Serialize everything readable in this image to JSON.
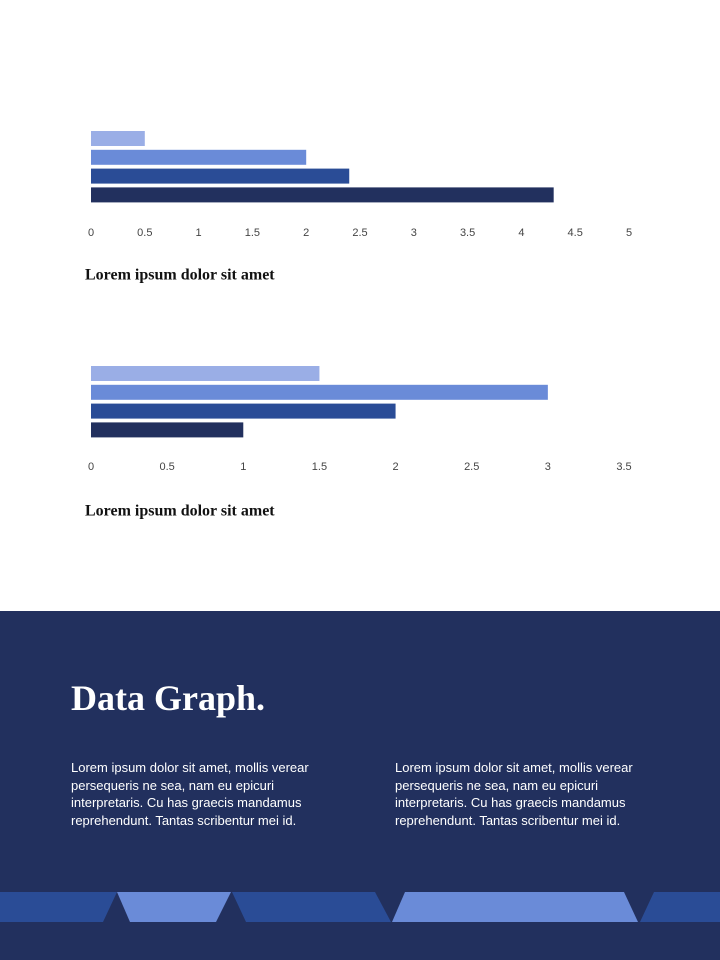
{
  "chart_data": [
    {
      "type": "bar",
      "orientation": "horizontal",
      "caption": "Lorem ipsum dolor sit amet",
      "values": [
        0.5,
        2.0,
        2.4,
        4.3
      ],
      "colors": [
        "#9aaee6",
        "#6a8bd8",
        "#2a4c96",
        "#22305e"
      ],
      "xlim": [
        0,
        5
      ],
      "xticks": [
        0,
        0.5,
        1,
        1.5,
        2,
        2.5,
        3,
        3.5,
        4,
        4.5,
        5
      ],
      "grid": false
    },
    {
      "type": "bar",
      "orientation": "horizontal",
      "caption": "Lorem ipsum dolor sit amet",
      "values": [
        1.5,
        3.0,
        2.0,
        1.0
      ],
      "colors": [
        "#9aaee6",
        "#6a8bd8",
        "#2a4c96",
        "#22305e"
      ],
      "xlim": [
        0,
        3.5
      ],
      "xticks": [
        0,
        0.5,
        1,
        1.5,
        2,
        2.5,
        3,
        3.5
      ],
      "grid": false
    }
  ],
  "heading": "Data Graph.",
  "paragraphs": [
    "Lorem ipsum dolor sit amet, mollis verear persequeris ne sea, nam eu epicuri interpretaris. Cu has graecis mandamus reprehendunt. Tantas scribentur mei id.",
    "Lorem ipsum dolor sit amet, mollis verear persequeris ne sea, nam eu epicuri interpretaris. Cu has graecis mandamus reprehendunt. Tantas scribentur mei id."
  ]
}
